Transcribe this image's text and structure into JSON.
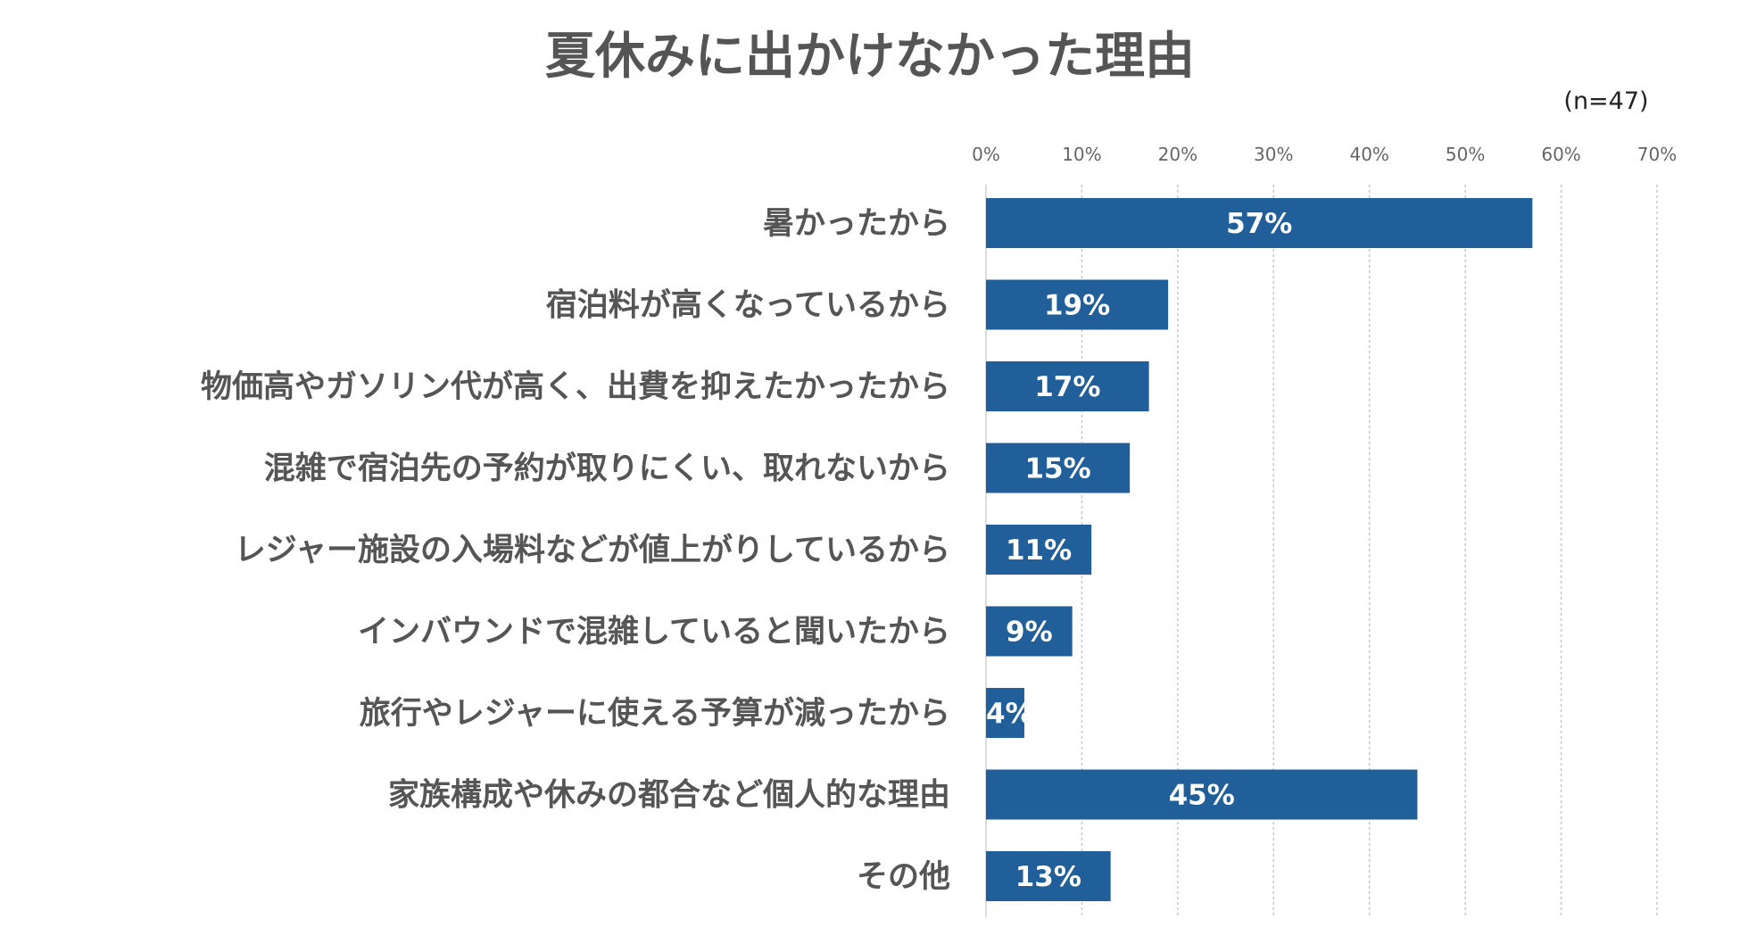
{
  "chart_data": {
    "type": "bar",
    "orientation": "horizontal",
    "title": "夏休みに出かけなかった理由",
    "note": "(n=47)",
    "categories": [
      "暑かったから",
      "宿泊料が高くなっているから",
      "物価高やガソリン代が高く、出費を抑えたかったから",
      "混雑で宿泊先の予約が取りにくい、取れないから",
      "レジャー施設の入場料などが値上がりしているから",
      "インバウンドで混雑していると聞いたから",
      "旅行やレジャーに使える予算が減ったから",
      "家族構成や休みの都合など個人的な理由",
      "その他"
    ],
    "values": [
      57,
      19,
      17,
      15,
      11,
      9,
      4,
      45,
      13
    ],
    "data_labels": [
      "57%",
      "19%",
      "17%",
      "15%",
      "11%",
      "9%",
      "4%",
      "45%",
      "13%"
    ],
    "xlim": [
      0,
      70
    ],
    "x_ticks": [
      0,
      10,
      20,
      30,
      40,
      50,
      60,
      70
    ],
    "x_tick_labels": [
      "0%",
      "10%",
      "20%",
      "30%",
      "40%",
      "50%",
      "60%",
      "70%"
    ],
    "tick_position": "top",
    "grid": true,
    "bar_color": "#215f9a"
  }
}
